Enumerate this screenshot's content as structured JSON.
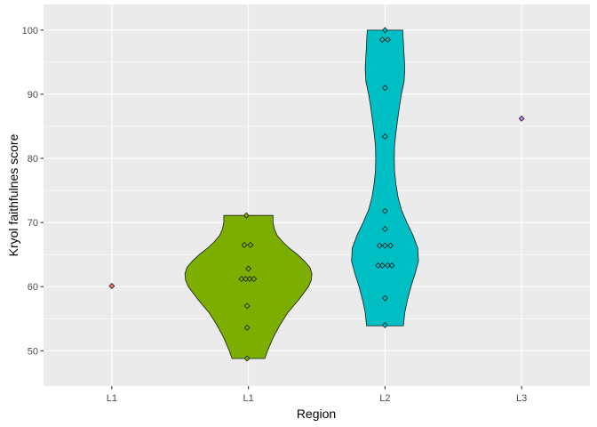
{
  "chart_data": {
    "type": "violin",
    "xlabel": "Region",
    "ylabel": "Kryol faithfulnes score",
    "categories": [
      "L1",
      "L1",
      "L2",
      "L3"
    ],
    "ylim": [
      44.5,
      104
    ],
    "yticks": [
      50,
      60,
      70,
      80,
      90,
      100
    ],
    "grid": true,
    "panel_background": "#ebebeb",
    "groups": [
      {
        "label": "L1",
        "color": "#f8766d",
        "points": [
          [
            0,
            60.1
          ]
        ],
        "violin": null
      },
      {
        "label": "L1",
        "color": "#7cae00",
        "points": [
          [
            -0.015,
            71.1
          ],
          [
            -0.03,
            66.5
          ],
          [
            0.015,
            66.5
          ],
          [
            0,
            62.8
          ],
          [
            -0.05,
            61.2
          ],
          [
            -0.02,
            61.2
          ],
          [
            0.01,
            61.2
          ],
          [
            0.04,
            61.2
          ],
          [
            -0.01,
            57.0
          ],
          [
            -0.01,
            53.6
          ],
          [
            -0.01,
            48.8
          ]
        ],
        "violin": {
          "y": [
            48.8,
            50,
            52,
            54,
            56,
            58,
            60,
            61,
            62,
            63,
            64,
            65,
            66,
            67,
            68,
            69,
            70,
            71.1
          ],
          "half_width": [
            0.12,
            0.14,
            0.18,
            0.23,
            0.29,
            0.37,
            0.44,
            0.46,
            0.465,
            0.45,
            0.41,
            0.36,
            0.3,
            0.25,
            0.21,
            0.19,
            0.18,
            0.18
          ]
        }
      },
      {
        "label": "L2",
        "color": "#00bfc4",
        "points": [
          [
            0,
            100.0
          ],
          [
            -0.02,
            98.5
          ],
          [
            0.02,
            98.5
          ],
          [
            0,
            91.0
          ],
          [
            0,
            83.4
          ],
          [
            0,
            71.8
          ],
          [
            0,
            69.0
          ],
          [
            -0.04,
            66.4
          ],
          [
            0,
            66.4
          ],
          [
            0.04,
            66.4
          ],
          [
            -0.05,
            63.3
          ],
          [
            -0.02,
            63.3
          ],
          [
            0.02,
            63.3
          ],
          [
            0.05,
            63.3
          ],
          [
            0,
            58.2
          ],
          [
            0,
            54.0
          ]
        ],
        "violin": {
          "y": [
            53.9,
            56,
            58,
            60,
            62,
            64,
            66,
            68,
            70,
            72,
            74,
            76,
            78,
            80,
            82,
            84,
            86,
            88,
            90,
            92,
            94,
            96,
            98,
            100
          ],
          "half_width": [
            0.135,
            0.145,
            0.165,
            0.19,
            0.22,
            0.245,
            0.24,
            0.205,
            0.16,
            0.12,
            0.095,
            0.08,
            0.07,
            0.068,
            0.07,
            0.08,
            0.092,
            0.105,
            0.12,
            0.14,
            0.145,
            0.14,
            0.135,
            0.13
          ]
        }
      },
      {
        "label": "L3",
        "color": "#c77cff",
        "points": [
          [
            0,
            86.2
          ]
        ],
        "violin": null
      }
    ]
  }
}
